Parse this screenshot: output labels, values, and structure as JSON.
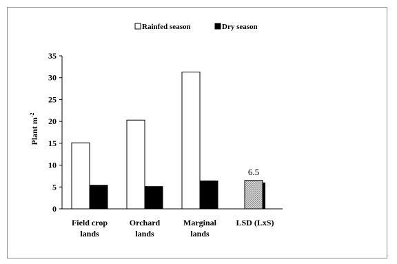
{
  "chart_data": {
    "type": "bar",
    "title": "",
    "ylabel": "Plant m",
    "ylabel_superscript": "-2",
    "xlabel": "",
    "ylim": [
      0,
      35
    ],
    "y_ticks": [
      0,
      5,
      10,
      15,
      20,
      25,
      30,
      35
    ],
    "categories": [
      {
        "lines": [
          "Field crop",
          "lands"
        ]
      },
      {
        "lines": [
          "Orchard",
          "lands"
        ]
      },
      {
        "lines": [
          "Marginal",
          "lands"
        ]
      },
      {
        "lines": [
          "LSD (LxS)"
        ]
      }
    ],
    "series": [
      {
        "name": "Rainfed season",
        "color": "#ffffff",
        "values": [
          15.1,
          20.3,
          31.3,
          null
        ]
      },
      {
        "name": "Dry season",
        "color": "#000000",
        "values": [
          5.4,
          5.1,
          6.4,
          null
        ]
      }
    ],
    "lsd": {
      "value": 6.5,
      "label": "6.5",
      "fill": "hatched-gray"
    },
    "legend": {
      "position": "top",
      "items": [
        {
          "label": "Rainfed season",
          "color": "#ffffff"
        },
        {
          "label": "Dry season",
          "color": "#000000"
        }
      ]
    },
    "grid": false
  }
}
